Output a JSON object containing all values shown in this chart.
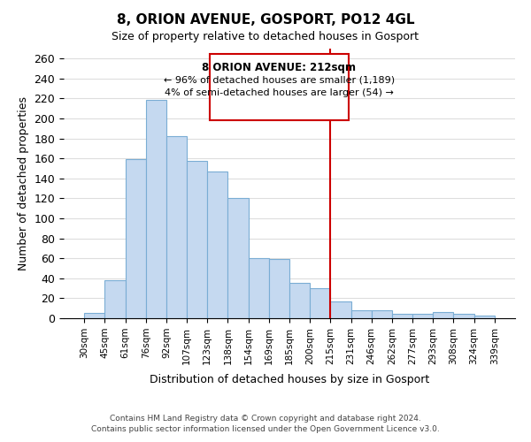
{
  "title": "8, ORION AVENUE, GOSPORT, PO12 4GL",
  "subtitle": "Size of property relative to detached houses in Gosport",
  "xlabel": "Distribution of detached houses by size in Gosport",
  "ylabel": "Number of detached properties",
  "bar_labels": [
    "30sqm",
    "45sqm",
    "61sqm",
    "76sqm",
    "92sqm",
    "107sqm",
    "123sqm",
    "138sqm",
    "154sqm",
    "169sqm",
    "185sqm",
    "200sqm",
    "215sqm",
    "231sqm",
    "246sqm",
    "262sqm",
    "277sqm",
    "293sqm",
    "308sqm",
    "324sqm",
    "339sqm"
  ],
  "bar_values": [
    5,
    38,
    159,
    219,
    182,
    158,
    147,
    120,
    60,
    59,
    35,
    30,
    17,
    8,
    8,
    4,
    4,
    6,
    4,
    3
  ],
  "bar_color": "#c5d9f0",
  "bar_edge_color": "#7aadd4",
  "vline_x": 12,
  "vline_color": "#cc0000",
  "annotation_title": "8 ORION AVENUE: 212sqm",
  "annotation_line1": "← 96% of detached houses are smaller (1,189)",
  "annotation_line2": "4% of semi-detached houses are larger (54) →",
  "annotation_box_edge_color": "#cc0000",
  "footer_line1": "Contains HM Land Registry data © Crown copyright and database right 2024.",
  "footer_line2": "Contains public sector information licensed under the Open Government Licence v3.0.",
  "ylim": [
    0,
    270
  ],
  "grid_color": "#dddddd",
  "background_color": "#ffffff"
}
